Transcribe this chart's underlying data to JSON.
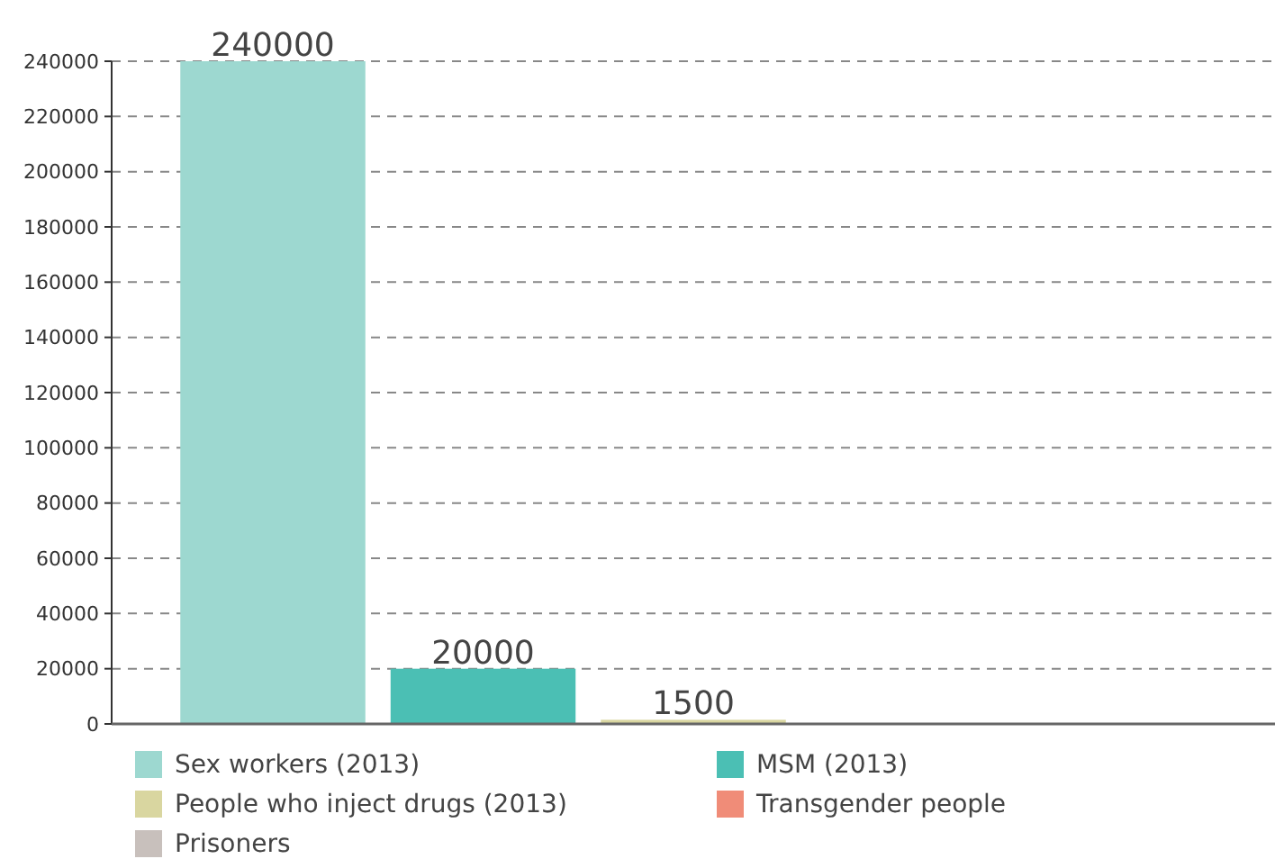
{
  "chart_data": {
    "type": "bar",
    "categories": [
      null
    ],
    "series": [
      {
        "name": "Sex workers (2013)",
        "color": "#9dd8d0",
        "values": [
          240000
        ]
      },
      {
        "name": "MSM (2013)",
        "color": "#4bbfb4",
        "values": [
          20000
        ]
      },
      {
        "name": "People who inject drugs (2013)",
        "color": "#d9d6a0",
        "values": [
          1500
        ]
      },
      {
        "name": "Transgender people",
        "color": "#f08c78",
        "values": [
          null
        ]
      },
      {
        "name": "Prisoners",
        "color": "#c8c0bc",
        "values": [
          null
        ]
      }
    ],
    "ylim": [
      0,
      240000
    ],
    "yticks": [
      0,
      20000,
      40000,
      60000,
      80000,
      100000,
      120000,
      140000,
      160000,
      180000,
      200000,
      220000,
      240000
    ],
    "grid": "y",
    "legend": "bottom",
    "data_labels": true
  }
}
